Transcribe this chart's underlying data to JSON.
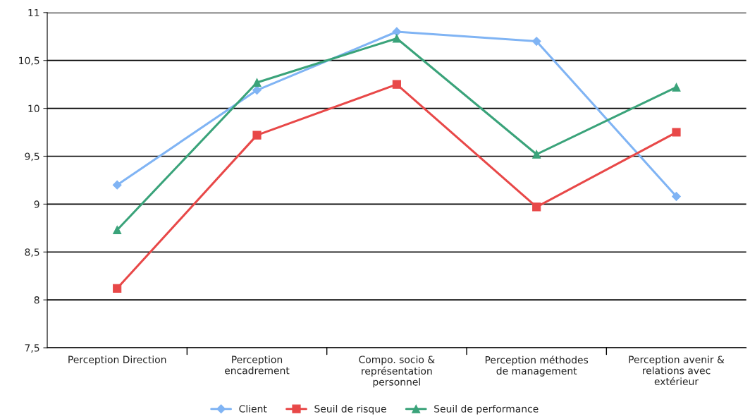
{
  "chart_data": {
    "type": "line",
    "categories": [
      "Perception Direction",
      "Perception\nencadrement",
      "Compo. socio &\nreprésentation\npersonnel",
      "Perception méthodes\nde management",
      "Perception avenir &\nrelations avec\nextérieur"
    ],
    "series": [
      {
        "name": "Client",
        "color": "#80b4f4",
        "marker": "diamond",
        "values": [
          9.2,
          10.19,
          10.8,
          10.7,
          9.08
        ]
      },
      {
        "name": "Seuil de risque",
        "color": "#e84848",
        "marker": "square",
        "values": [
          8.12,
          9.72,
          10.25,
          8.97,
          9.75
        ]
      },
      {
        "name": "Seuil de performance",
        "color": "#3aa37a",
        "marker": "triangle",
        "values": [
          8.73,
          10.27,
          10.73,
          9.52,
          10.22
        ]
      }
    ],
    "ylim": [
      7.5,
      11
    ],
    "yticks": [
      {
        "value": 7.5,
        "label": "7,5"
      },
      8,
      {
        "value": 8.5,
        "label": "8,5"
      },
      9,
      {
        "value": 9.5,
        "label": "9,5"
      },
      10,
      {
        "value": 10.5,
        "label": "10,5"
      },
      11
    ],
    "grid": "y",
    "legend": "bottom",
    "line_style": "solid"
  }
}
